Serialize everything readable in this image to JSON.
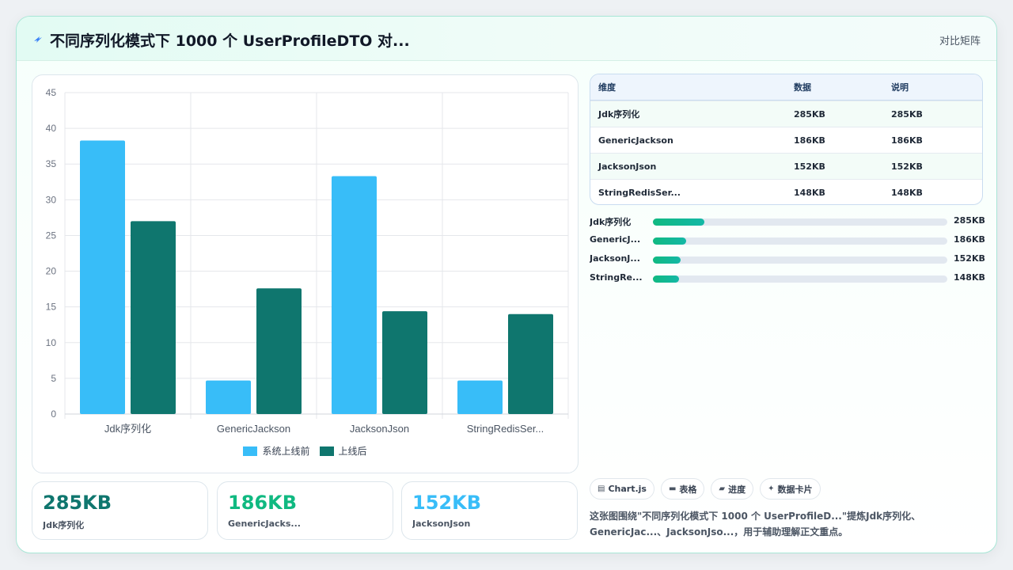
{
  "header": {
    "title": "不同序列化模式下 1000 个 UserProfileDTO 对...",
    "bolt_icon": "bolt-icon",
    "action": "对比矩阵"
  },
  "chart_data": {
    "type": "bar",
    "categories": [
      "Jdk序列化",
      "GenericJackson",
      "JacksonJson",
      "StringRedisSer..."
    ],
    "series": [
      {
        "name": "系统上线前",
        "values": [
          38.3,
          4.7,
          33.3,
          4.7
        ],
        "color": "#38bdf8"
      },
      {
        "name": "上线后",
        "values": [
          27.0,
          17.6,
          14.4,
          14.0
        ],
        "color": "#0f766e"
      }
    ],
    "ylim": [
      0,
      45
    ],
    "yticks": [
      0,
      5,
      10,
      15,
      20,
      25,
      30,
      35,
      40,
      45
    ],
    "grid": true,
    "legend": "bottom",
    "title": "",
    "xlabel": "",
    "ylabel": ""
  },
  "stats": [
    {
      "value": "285KB",
      "label": "Jdk序列化",
      "color": "#0f766e"
    },
    {
      "value": "186KB",
      "label": "GenericJacks...",
      "color": "#10b981"
    },
    {
      "value": "152KB",
      "label": "JacksonJson",
      "color": "#38bdf8"
    }
  ],
  "table": {
    "headers": [
      "维度",
      "数据",
      "说明"
    ],
    "rows": [
      [
        "Jdk序列化",
        "285KB",
        "285KB"
      ],
      [
        "GenericJackson",
        "186KB",
        "186KB"
      ],
      [
        "JacksonJson",
        "152KB",
        "152KB"
      ],
      [
        "StringRedisSer...",
        "148KB",
        "148KB"
      ]
    ]
  },
  "progress": [
    {
      "name": "Jdk序列化",
      "value": "285KB",
      "fraction": 0.175
    },
    {
      "name": "GenericJ...",
      "value": "186KB",
      "fraction": 0.114
    },
    {
      "name": "JacksonJ...",
      "value": "152KB",
      "fraction": 0.094
    },
    {
      "name": "StringRe...",
      "value": "148KB",
      "fraction": 0.088
    }
  ],
  "tabs": [
    {
      "icon": "chart-icon",
      "glyph": "▤",
      "label": "Chart.js"
    },
    {
      "icon": "table-icon",
      "glyph": "▬",
      "label": "表格"
    },
    {
      "icon": "progress-icon",
      "glyph": "▰",
      "label": "进度"
    },
    {
      "icon": "sparkle-icon",
      "glyph": "✦",
      "label": "数据卡片"
    }
  ],
  "description": "这张图围绕\"不同序列化模式下 1000 个 UserProfileD...\"提炼Jdk序列化、GenericJac...、JacksonJso...，用于辅助理解正文重点。"
}
